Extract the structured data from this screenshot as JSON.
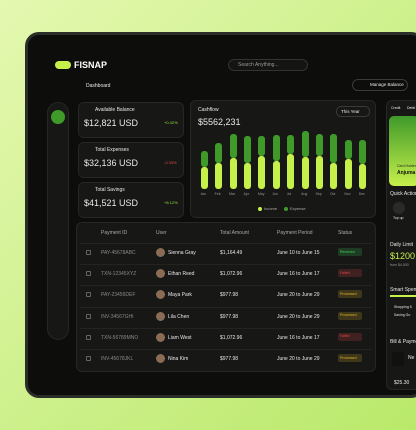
{
  "header": {
    "logo": "FISNAP",
    "search": "Search Anything...",
    "page": "Dashboard",
    "button": "Manage Balance"
  },
  "stats": [
    {
      "label": "Available Balance",
      "value": "$12,821 USD",
      "change": "+0.42%",
      "color": "#8fe03a"
    },
    {
      "label": "Total Expenses",
      "value": "$32,136 USD",
      "change": "-0.33%",
      "color": "#e5484d"
    },
    {
      "label": "Total Savings",
      "value": "$41,521 USD",
      "change": "+8.12%",
      "color": "#8fe03a"
    }
  ],
  "cashflow": {
    "type": "bar",
    "stacked": true,
    "title": "Cashflow",
    "amount": "$5562,231",
    "period": "This Year",
    "categories": [
      "Jan",
      "Feb",
      "Mar",
      "Apr",
      "May",
      "Jun",
      "Jul",
      "Aug",
      "Sep",
      "Oct",
      "Nov",
      "Dec"
    ],
    "series": [
      {
        "name": "Income",
        "color": "#c6f04a",
        "values": [
          25,
          30,
          35,
          30,
          38,
          32,
          40,
          36,
          38,
          30,
          34,
          28
        ]
      },
      {
        "name": "Expense",
        "color": "#3f9a2a",
        "values": [
          18,
          22,
          28,
          30,
          22,
          30,
          22,
          30,
          25,
          33,
          22,
          28
        ]
      }
    ]
  },
  "table": {
    "columns": [
      "Payment ID",
      "User",
      "Total Amount",
      "Payment Period",
      "Status"
    ],
    "rows": [
      [
        "PAY-45678ABC",
        "Sienna Gray",
        "$1,164.49",
        "June 10 to June 15",
        "Received"
      ],
      [
        "TXN-12345XYZ",
        "Ethan Reed",
        "$1,072.96",
        "June 16 to June 17",
        "Failed"
      ],
      [
        "PAY-23456DEF",
        "Maya Park",
        "$977.98",
        "June 20 to June 29",
        "Processed"
      ],
      [
        "INV-34567GHI",
        "Lila Chen",
        "$977.98",
        "June 20 to June 29",
        "Processed"
      ],
      [
        "TXN-56789MNO",
        "Liam West",
        "$1,072.96",
        "June 16 to June 17",
        "Failed"
      ],
      [
        "INV-45678JKL",
        "Nina Kim",
        "$977.98",
        "June 20 to June 29",
        "Processed"
      ]
    ],
    "status_colors": {
      "Received": "#3ecf5a",
      "Failed": "#e5484d",
      "Processed": "#e0b32a"
    }
  },
  "side": {
    "tabs": [
      "Credit",
      "Debit"
    ],
    "card_label": "Card Holder",
    "card_name": "Anjuma",
    "quick": "Quick Action",
    "topup": "Top up",
    "daily": "Daily Limit",
    "limit": "$1200 a",
    "limit_sub": "from $4,000",
    "smart": "Smart Spend",
    "items": [
      "Shopping 5",
      "Saving Go"
    ],
    "bills": "Bill & Paymen",
    "bill_name": "Ne",
    "bill_amount": "$25.30"
  }
}
